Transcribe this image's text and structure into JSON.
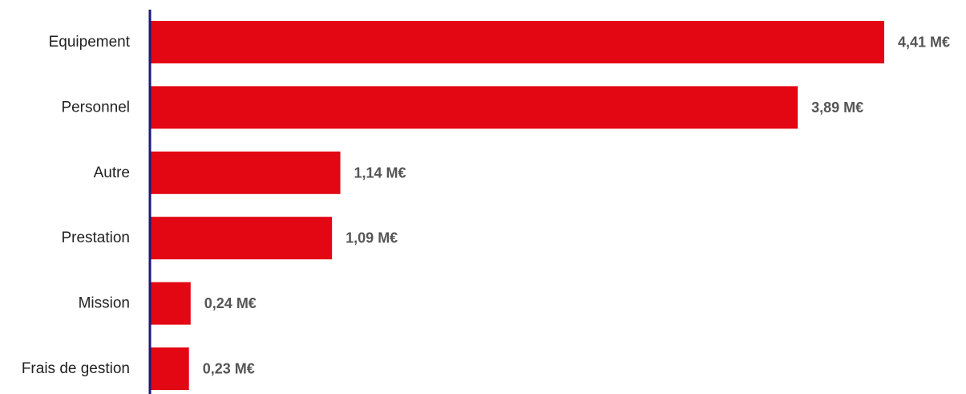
{
  "chart_data": {
    "type": "bar",
    "orientation": "horizontal",
    "categories": [
      "Equipement",
      "Personnel",
      "Autre",
      "Prestation",
      "Mission",
      "Frais de gestion"
    ],
    "values": [
      4.41,
      3.89,
      1.14,
      1.09,
      0.24,
      0.23
    ],
    "value_labels": [
      "4,41 M€",
      "3,89 M€",
      "1,14 M€",
      "1,09 M€",
      "0,24 M€",
      "0,23 M€"
    ],
    "unit": "M€",
    "title": "",
    "xlabel": "",
    "ylabel": "",
    "xlim": [
      0,
      4.41
    ],
    "grid": false,
    "legend": "none",
    "colors": {
      "bar": "#e30613",
      "axis": "#1a1a7a",
      "category_text": "#222222",
      "value_text": "#555555"
    }
  }
}
